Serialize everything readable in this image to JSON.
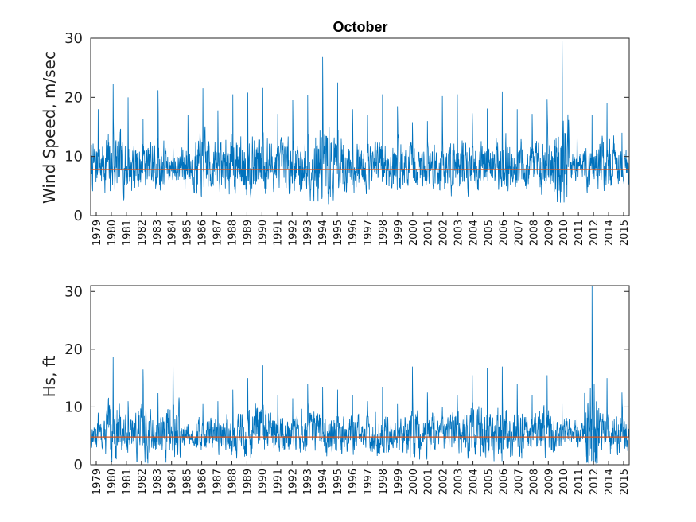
{
  "chart_data": [
    {
      "type": "line",
      "title": "October",
      "xlabel": "",
      "ylabel": "Wind Speed, m/sec",
      "ylim": [
        0,
        30
      ],
      "yticks": [
        0,
        10,
        20,
        30
      ],
      "x_tick_labels": [
        "1979",
        "1980",
        "1981",
        "1982",
        "1983",
        "1984",
        "1985",
        "1986",
        "1987",
        "1988",
        "1989",
        "1990",
        "1991",
        "1992",
        "1993",
        "1994",
        "1995",
        "1996",
        "1997",
        "1998",
        "1999",
        "2000",
        "2001",
        "2002",
        "2003",
        "2004",
        "2005",
        "2006",
        "2007",
        "2008",
        "2009",
        "2010",
        "2011",
        "2012",
        "2014",
        "2015"
      ],
      "mean_line": 7.8,
      "series_color": "#0072BD",
      "mean_color": "#D95319",
      "series": [
        {
          "segment_peaks": [
            18,
            22.3,
            20,
            16.3,
            21.2,
            12,
            17,
            21.5,
            17.8,
            20.5,
            20.8,
            21.7,
            17.2,
            19.5,
            20.4,
            26.8,
            22.5,
            18,
            17,
            20.5,
            18.5,
            15.8,
            16,
            20.2,
            20.5,
            17.3,
            18.1,
            21,
            18,
            17.2,
            19.6,
            29.5,
            14,
            17,
            19,
            14
          ]
        }
      ]
    },
    {
      "type": "line",
      "title": "",
      "xlabel": "",
      "ylabel": "Hs, ft",
      "ylim": [
        0,
        31
      ],
      "yticks": [
        0,
        10,
        20,
        30
      ],
      "x_tick_labels": [
        "1979",
        "1980",
        "1981",
        "1982",
        "1983",
        "1984",
        "1985",
        "1986",
        "1987",
        "1988",
        "1989",
        "1990",
        "1991",
        "1992",
        "1993",
        "1994",
        "1995",
        "1996",
        "1997",
        "1998",
        "1999",
        "2000",
        "2001",
        "2002",
        "2003",
        "2004",
        "2005",
        "2006",
        "2007",
        "2008",
        "2009",
        "2010",
        "2011",
        "2012",
        "2014",
        "2015"
      ],
      "mean_line": 4.8,
      "series_color": "#0072BD",
      "mean_color": "#D95319",
      "series": [
        {
          "segment_peaks": [
            9,
            18.6,
            11,
            16.5,
            12.4,
            19.2,
            7,
            10.5,
            11,
            13,
            15,
            17.2,
            12,
            11.5,
            14,
            13.5,
            13,
            12,
            11,
            13.5,
            10.5,
            17,
            12.5,
            10,
            12,
            15.5,
            16.8,
            17,
            14,
            12,
            15.5,
            10.5,
            9,
            31,
            15,
            12.5
          ]
        }
      ]
    }
  ]
}
